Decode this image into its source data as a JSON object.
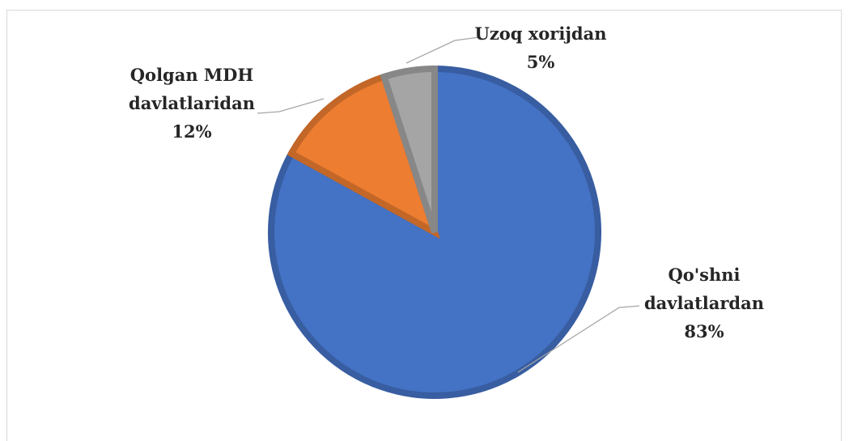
{
  "chart_data": {
    "type": "pie",
    "categories": [
      "Qo'shni davlatlardan",
      "Qolgan MDH davlatlaridan",
      "Uzoq xorijdan"
    ],
    "values": [
      83,
      12,
      5
    ],
    "value_labels": [
      "83%",
      "12%",
      "5%"
    ],
    "colors": [
      "#4472c4",
      "#ed7d31",
      "#a5a5a5"
    ]
  }
}
